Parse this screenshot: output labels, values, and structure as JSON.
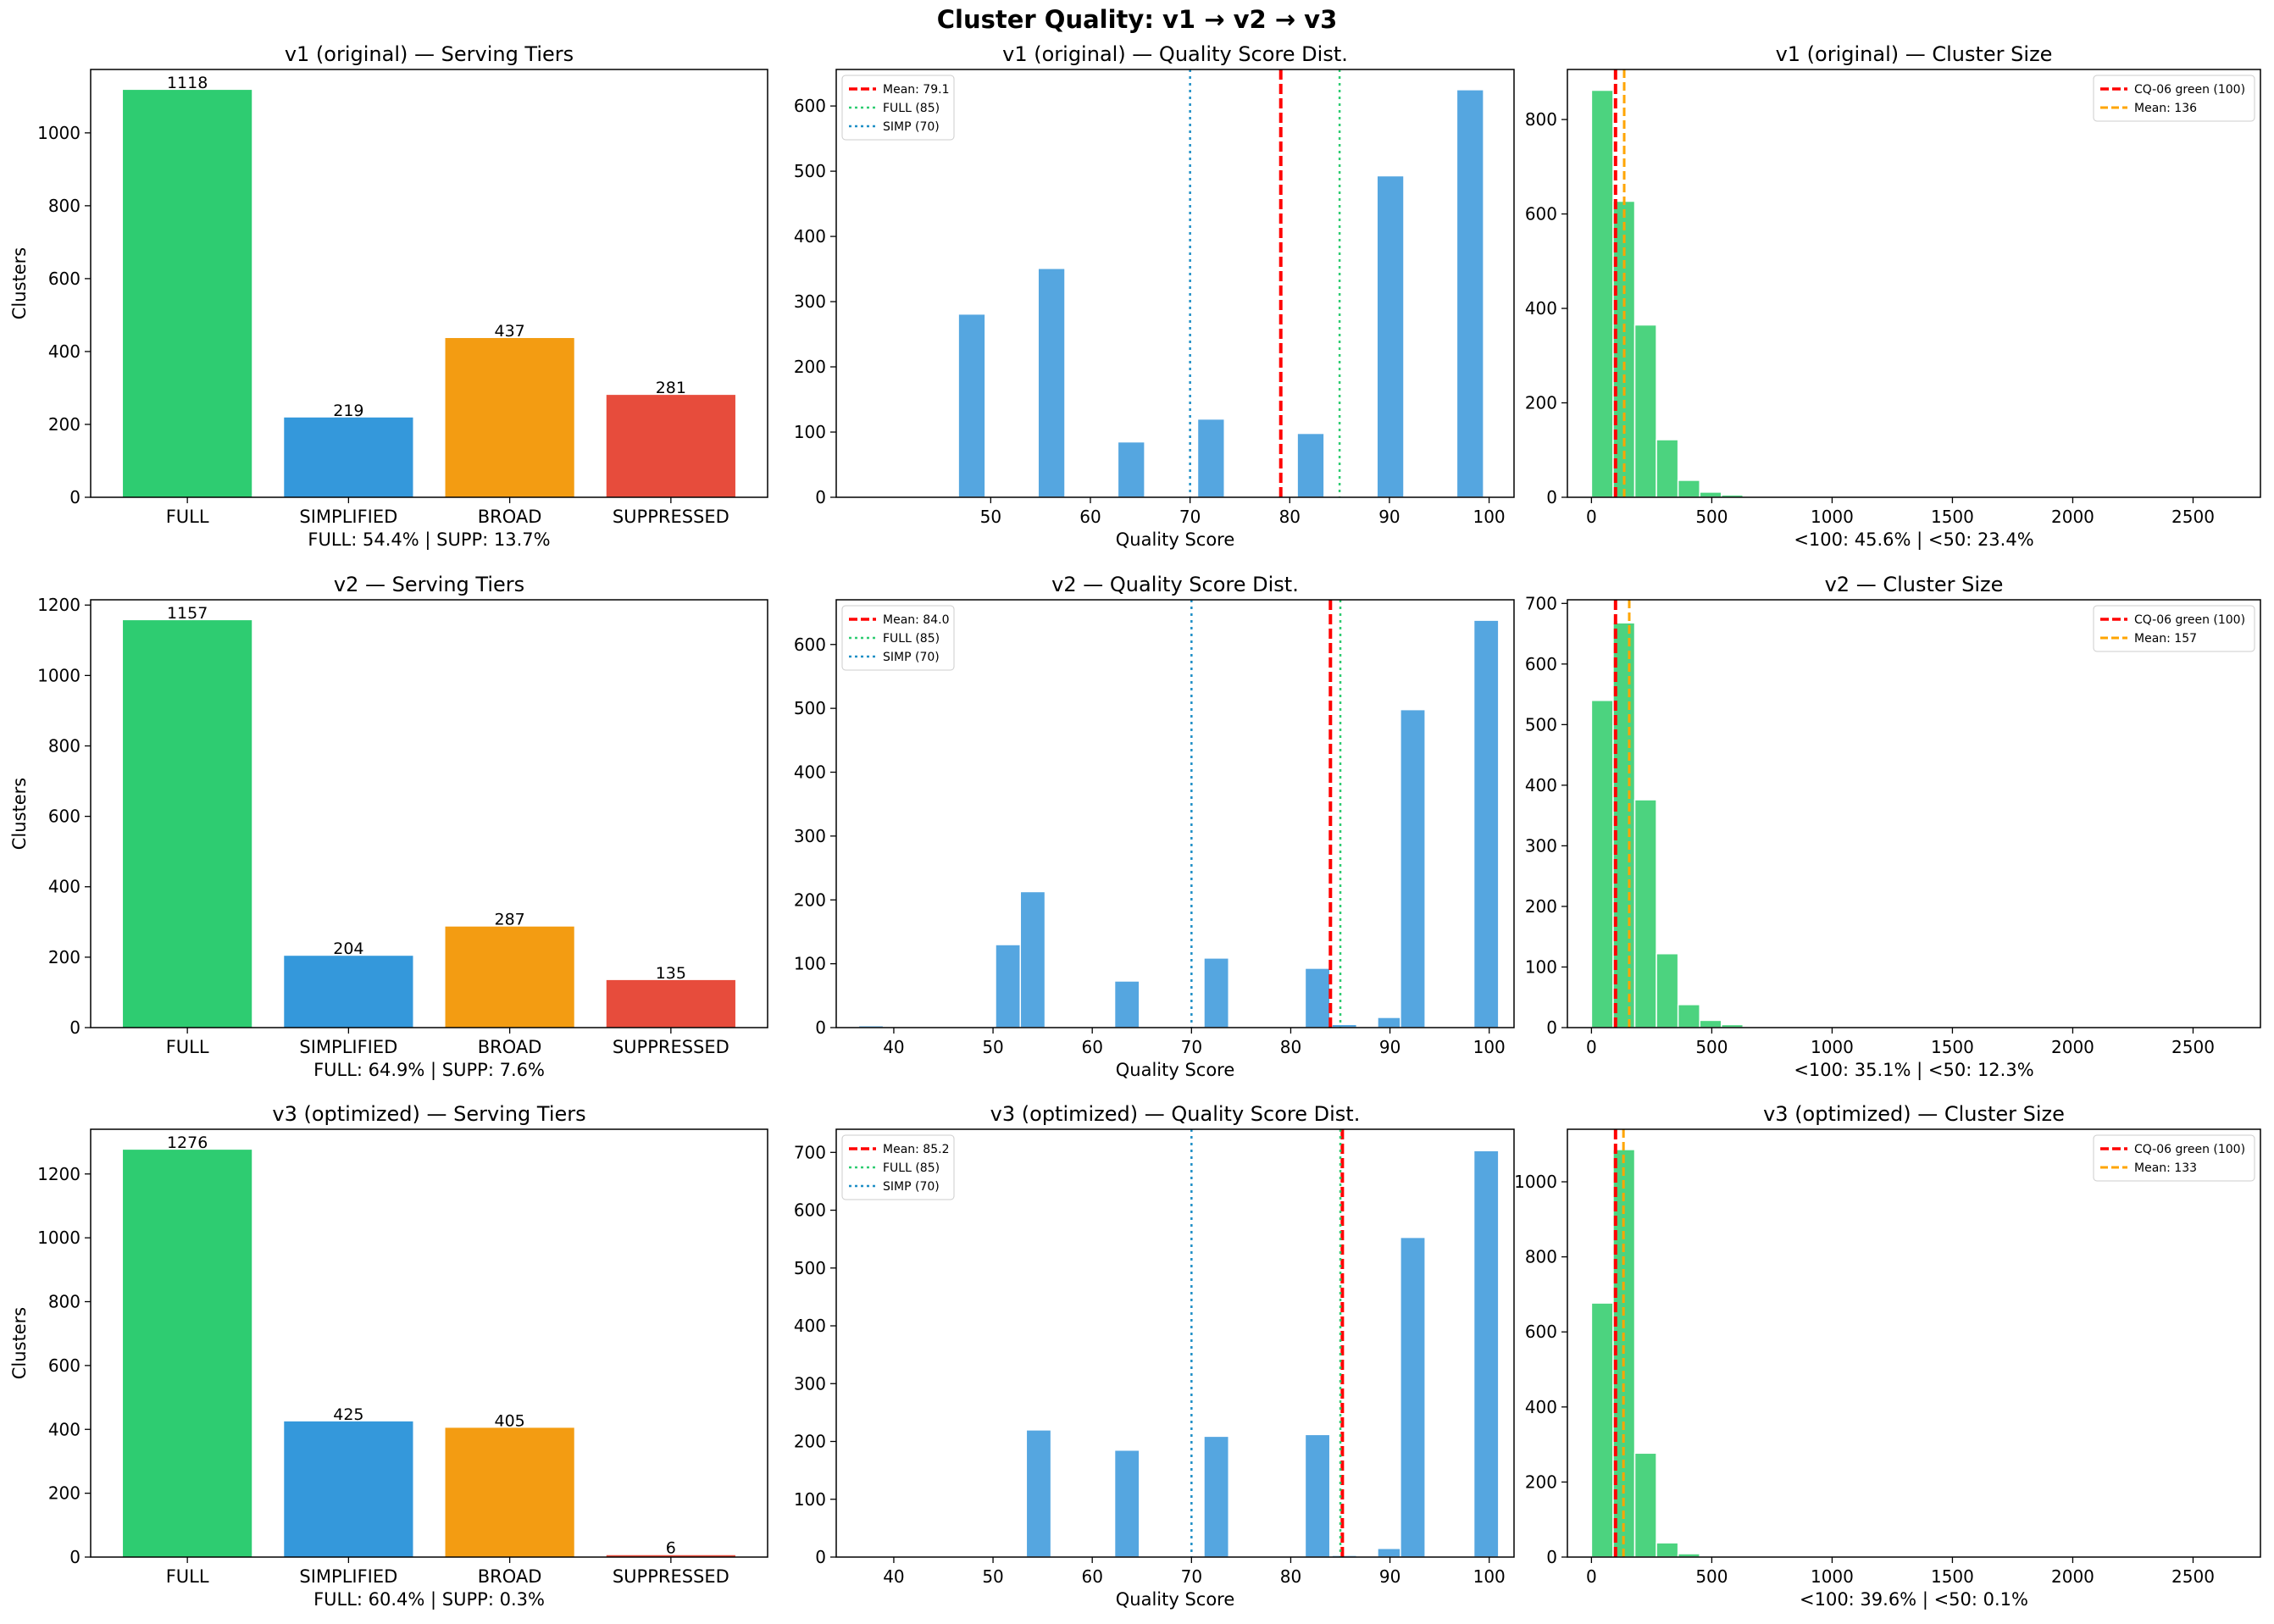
{
  "figure": {
    "title": "Cluster Quality: v1 → v2 → v3"
  },
  "colors": {
    "full": "#2ecc71",
    "simplified": "#3498db",
    "broad": "#f39c12",
    "suppressed": "#e74c3c",
    "hist_quality": "#55a6e0",
    "hist_size": "#4cd37f",
    "mean_line": "#ff0000",
    "full_line": "#2ecc71",
    "simp_line": "#1f8fc6",
    "size_mean_line": "#ffa500"
  },
  "chart_data": [
    {
      "id": "v1-tiers",
      "type": "bar",
      "title": "v1 (original) — Serving Tiers",
      "ylabel": "Clusters",
      "subtitle": "FULL: 54.4% | SUPP: 13.7%",
      "categories": [
        "FULL",
        "SIMPLIFIED",
        "BROAD",
        "SUPPRESSED"
      ],
      "values": [
        1118,
        219,
        437,
        281
      ],
      "ylim": [
        0,
        1174
      ],
      "yticks": [
        0,
        200,
        400,
        600,
        800,
        1000
      ]
    },
    {
      "id": "v1-quality",
      "type": "bar",
      "title": "v1 (original) — Quality Score Dist.",
      "xlabel": "Quality Score",
      "xlim": [
        34.5,
        102.5
      ],
      "ylim": [
        0,
        656
      ],
      "xticks": [
        50,
        60,
        70,
        80,
        90,
        100
      ],
      "yticks": [
        0,
        100,
        200,
        300,
        400,
        500,
        600
      ],
      "bars": [
        {
          "x": 48.1,
          "v": 281
        },
        {
          "x": 56.1,
          "v": 351
        },
        {
          "x": 64.1,
          "v": 85
        },
        {
          "x": 72.1,
          "v": 120
        },
        {
          "x": 82.1,
          "v": 98
        },
        {
          "x": 90.1,
          "v": 493
        },
        {
          "x": 98.1,
          "v": 625
        }
      ],
      "bar_width": 2.7,
      "lines": [
        {
          "label": "Mean: 79.1",
          "x": 79.1,
          "style": "mean"
        },
        {
          "label": "FULL (85)",
          "x": 85,
          "style": "full"
        },
        {
          "label": "SIMP (70)",
          "x": 70,
          "style": "simp"
        }
      ]
    },
    {
      "id": "v1-size",
      "type": "bar",
      "title": "v1 (original) — Cluster Size",
      "subtitle": "<100: 45.6%  |  <50: 23.4%",
      "xlim": [
        -100,
        2780
      ],
      "ylim": [
        0,
        906
      ],
      "xticks": [
        0,
        500,
        1000,
        1500,
        2000,
        2500
      ],
      "yticks": [
        0,
        200,
        400,
        600,
        800
      ],
      "bin_width": 90,
      "bins_start": 0,
      "values": [
        862,
        627,
        365,
        122,
        36,
        11,
        5,
        2,
        1,
        0,
        0,
        1,
        0,
        0,
        0,
        0,
        0,
        0,
        0,
        0,
        0,
        0,
        0,
        0,
        0,
        0,
        0,
        0,
        0,
        1
      ],
      "lines": [
        {
          "label": "CQ-06 green (100)",
          "x": 100,
          "style": "mean"
        },
        {
          "label": "Mean: 136",
          "x": 136,
          "style": "sizemean"
        }
      ]
    },
    {
      "id": "v2-tiers",
      "type": "bar",
      "title": "v2 — Serving Tiers",
      "ylabel": "Clusters",
      "subtitle": "FULL: 64.9% | SUPP: 7.6%",
      "categories": [
        "FULL",
        "SIMPLIFIED",
        "BROAD",
        "SUPPRESSED"
      ],
      "values": [
        1157,
        204,
        287,
        135
      ],
      "ylim": [
        0,
        1215
      ],
      "yticks": [
        0,
        200,
        400,
        600,
        800,
        1000,
        1200
      ]
    },
    {
      "id": "v2-quality",
      "type": "bar",
      "title": "v2 — Quality Score Dist.",
      "xlabel": "Quality Score",
      "xlim": [
        34.2,
        102.5
      ],
      "ylim": [
        0,
        670
      ],
      "xticks": [
        40,
        50,
        60,
        70,
        80,
        90,
        100
      ],
      "yticks": [
        0,
        100,
        200,
        300,
        400,
        500,
        600
      ],
      "bars": [
        {
          "x": 37.7,
          "v": 3
        },
        {
          "x": 51.5,
          "v": 130
        },
        {
          "x": 54.0,
          "v": 213
        },
        {
          "x": 63.5,
          "v": 73
        },
        {
          "x": 72.5,
          "v": 109
        },
        {
          "x": 82.7,
          "v": 93
        },
        {
          "x": 85.4,
          "v": 5
        },
        {
          "x": 90.0,
          "v": 16
        },
        {
          "x": 92.3,
          "v": 498
        },
        {
          "x": 99.7,
          "v": 638
        }
      ],
      "bar_width": 2.5,
      "lines": [
        {
          "label": "Mean: 84.0",
          "x": 84,
          "style": "mean"
        },
        {
          "label": "FULL (85)",
          "x": 85,
          "style": "full"
        },
        {
          "label": "SIMP (70)",
          "x": 70,
          "style": "simp"
        }
      ]
    },
    {
      "id": "v2-size",
      "type": "bar",
      "title": "v2 — Cluster Size",
      "subtitle": "<100: 35.1%  |  <50: 12.3%",
      "xlim": [
        -100,
        2780
      ],
      "ylim": [
        0,
        706
      ],
      "xticks": [
        0,
        500,
        1000,
        1500,
        2000,
        2500
      ],
      "yticks": [
        0,
        100,
        200,
        300,
        400,
        500,
        600,
        700
      ],
      "bin_width": 90,
      "bins_start": 0,
      "values": [
        540,
        668,
        376,
        122,
        38,
        12,
        5,
        2,
        1,
        0,
        0,
        1,
        0,
        0,
        0,
        0,
        0,
        0,
        0,
        0,
        0,
        0,
        0,
        0,
        0,
        0,
        0,
        0,
        0,
        1
      ],
      "lines": [
        {
          "label": "CQ-06 green (100)",
          "x": 100,
          "style": "mean"
        },
        {
          "label": "Mean: 157",
          "x": 157,
          "style": "sizemean"
        }
      ]
    },
    {
      "id": "v3-tiers",
      "type": "bar",
      "title": "v3 (optimized) — Serving Tiers",
      "ylabel": "Clusters",
      "subtitle": "FULL: 60.4% | SUPP: 0.3%",
      "categories": [
        "FULL",
        "SIMPLIFIED",
        "BROAD",
        "SUPPRESSED"
      ],
      "values": [
        1276,
        425,
        405,
        6
      ],
      "ylim": [
        0,
        1340
      ],
      "yticks": [
        0,
        200,
        400,
        600,
        800,
        1000,
        1200
      ]
    },
    {
      "id": "v3-quality",
      "type": "bar",
      "title": "v3 (optimized) — Quality Score Dist.",
      "xlabel": "Quality Score",
      "xlim": [
        34.2,
        102.5
      ],
      "ylim": [
        0,
        740
      ],
      "xticks": [
        40,
        50,
        60,
        70,
        80,
        90,
        100
      ],
      "yticks": [
        0,
        100,
        200,
        300,
        400,
        500,
        600,
        700
      ],
      "bars": [
        {
          "x": 54.6,
          "v": 220
        },
        {
          "x": 63.5,
          "v": 185
        },
        {
          "x": 72.5,
          "v": 209
        },
        {
          "x": 82.7,
          "v": 212
        },
        {
          "x": 85.4,
          "v": 3
        },
        {
          "x": 90.0,
          "v": 15
        },
        {
          "x": 92.3,
          "v": 553
        },
        {
          "x": 99.7,
          "v": 703
        }
      ],
      "bar_width": 2.5,
      "lines": [
        {
          "label": "Mean: 85.2",
          "x": 85.2,
          "style": "mean"
        },
        {
          "label": "FULL (85)",
          "x": 85,
          "style": "full"
        },
        {
          "label": "SIMP (70)",
          "x": 70,
          "style": "simp"
        }
      ]
    },
    {
      "id": "v3-size",
      "type": "bar",
      "title": "v3 (optimized) — Cluster Size",
      "subtitle": "<100: 39.6%  |  <50: 0.1%",
      "xlim": [
        -100,
        2780
      ],
      "ylim": [
        0,
        1140
      ],
      "xticks": [
        0,
        500,
        1000,
        1500,
        2000,
        2500
      ],
      "yticks": [
        0,
        200,
        400,
        600,
        800,
        1000
      ],
      "bin_width": 90,
      "bins_start": 0,
      "values": [
        677,
        1086,
        277,
        38,
        9,
        3,
        1,
        0,
        0,
        0,
        0,
        0,
        0,
        0,
        0,
        0,
        0,
        0,
        0,
        0,
        0,
        0,
        0,
        0,
        0,
        0,
        0,
        0,
        0,
        0
      ],
      "lines": [
        {
          "label": "CQ-06 green (100)",
          "x": 100,
          "style": "mean"
        },
        {
          "label": "Mean: 133",
          "x": 133,
          "style": "sizemean"
        }
      ]
    }
  ]
}
